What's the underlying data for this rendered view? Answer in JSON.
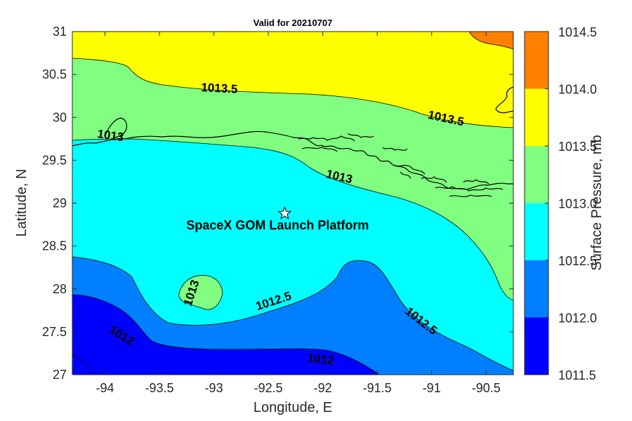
{
  "title": "Valid for 20210707",
  "x_axis": {
    "label": "Longitude, E",
    "range": [
      -94.3,
      -90.25
    ],
    "ticks": [
      -94,
      -93.5,
      -93,
      -92.5,
      -92,
      -91.5,
      -91,
      -90.5
    ],
    "tick_labels": [
      "-94",
      "-93.5",
      "-93",
      "-92.5",
      "-92",
      "-91.5",
      "-91",
      "-90.5"
    ]
  },
  "y_axis": {
    "label": "Latitude, N",
    "range": [
      27,
      31
    ],
    "ticks": [
      27,
      27.5,
      28,
      28.5,
      29,
      29.5,
      30,
      30.5,
      31
    ],
    "tick_labels": [
      "27",
      "27.5",
      "28",
      "28.5",
      "29",
      "29.5",
      "30",
      "30.5",
      "31"
    ]
  },
  "colorbar": {
    "label": "Surface Pressure, mb",
    "levels": [
      1011.5,
      1012.0,
      1012.5,
      1013.0,
      1013.5,
      1014.0,
      1014.5
    ],
    "level_labels": [
      "1011.5",
      "1012.0",
      "1012.5",
      "1013.0",
      "1013.5",
      "1014.0",
      "1014.5"
    ],
    "colors": [
      "#0000ff",
      "#0080ff",
      "#00ffff",
      "#80ff80",
      "#ffff00",
      "#ff8000"
    ]
  },
  "contour_labels": [
    {
      "text": "1013.5",
      "lon": -92.95,
      "lat": 30.33
    },
    {
      "text": "1013.5",
      "lon": -90.87,
      "lat": 29.98
    },
    {
      "text": "1013",
      "lon": -93.95,
      "lat": 29.78
    },
    {
      "text": "1013",
      "lon": -91.85,
      "lat": 29.3
    },
    {
      "text": "1013",
      "lon": -93.2,
      "lat": 27.95
    },
    {
      "text": "1012.5",
      "lon": -92.45,
      "lat": 27.85
    },
    {
      "text": "1012.5",
      "lon": -91.1,
      "lat": 27.62
    },
    {
      "text": "1012",
      "lon": -93.85,
      "lat": 27.45
    },
    {
      "text": "1012",
      "lon": -92.02,
      "lat": 27.17
    }
  ],
  "marker": {
    "name": "SpaceX GOM Launch Platform",
    "lon": -92.35,
    "lat": 28.88,
    "symbol": "star"
  }
}
